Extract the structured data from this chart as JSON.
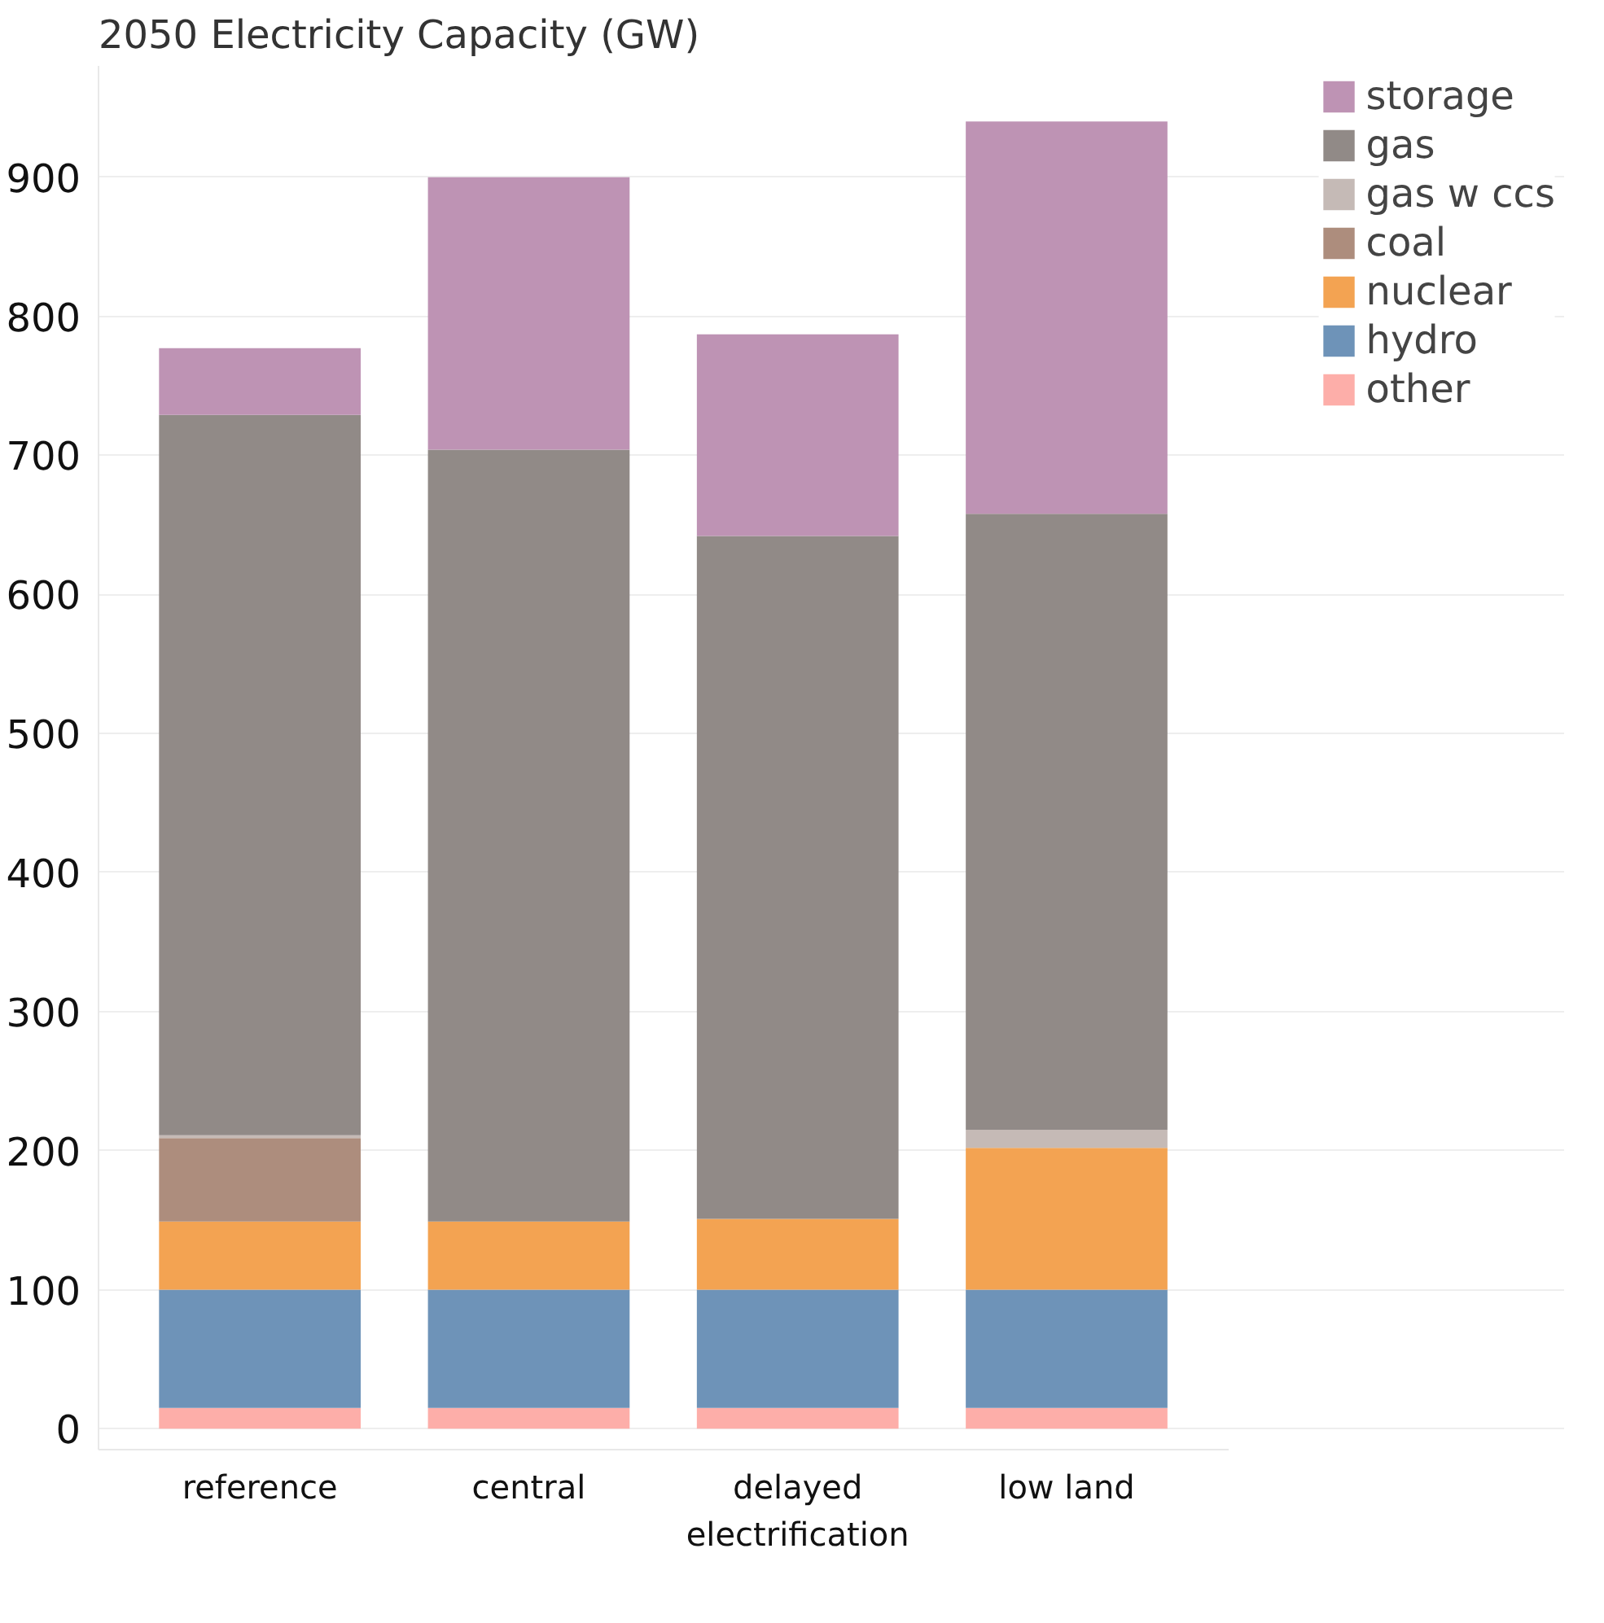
{
  "chart_data": {
    "type": "bar",
    "title": "2050 Electricity Capacity (GW)",
    "categories": [
      "reference",
      "central",
      "delayed\nelectrification",
      "low land"
    ],
    "stacked": true,
    "ylim": [
      -15,
      980
    ],
    "yticks": [
      0,
      100,
      200,
      300,
      400,
      500,
      600,
      700,
      800,
      900
    ],
    "grid": "y",
    "legend": "top right",
    "series": [
      {
        "name": "other",
        "color": "#fdaea9",
        "values": [
          15,
          15,
          15,
          15
        ]
      },
      {
        "name": "hydro",
        "color": "#6e93b8",
        "values": [
          85,
          85,
          85,
          85
        ]
      },
      {
        "name": "nuclear",
        "color": "#f3a352",
        "values": [
          49,
          49,
          51,
          102
        ]
      },
      {
        "name": "coal",
        "color": "#ad8d7d",
        "values": [
          60,
          0,
          0,
          0
        ]
      },
      {
        "name": "gas w ccs",
        "color": "#c5bab6",
        "values": [
          2,
          null,
          null,
          13
        ]
      },
      {
        "name": "gas",
        "color": "#918a87",
        "values": [
          518,
          555,
          491,
          443
        ]
      },
      {
        "name": "storage",
        "color": "#be93b4",
        "values": [
          48,
          196,
          145,
          282
        ]
      }
    ]
  }
}
